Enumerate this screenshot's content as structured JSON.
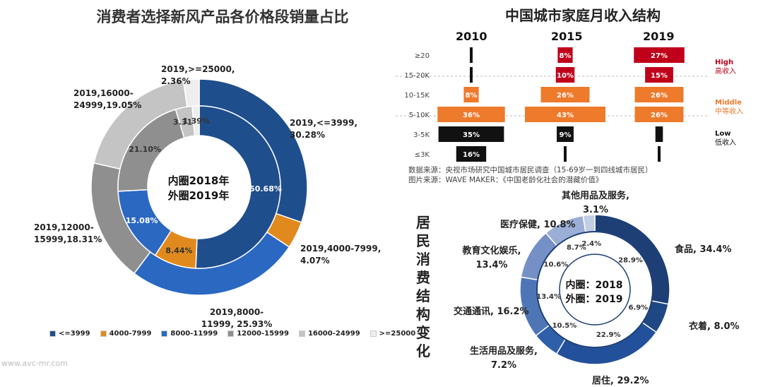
{
  "watermark": "www.avc-mr.com",
  "left_chart": {
    "title": "消费者选择新风产品各价格段销量占比",
    "center_line1": "内圈2018年",
    "center_line2": "外圈2019年",
    "legend": [
      {
        "label": "<=3999",
        "color": "#1f4e8c"
      },
      {
        "label": "4000-7999",
        "color": "#e08a1e"
      },
      {
        "label": "8000-11999",
        "color": "#2a68c2"
      },
      {
        "label": "12000-15999",
        "color": "#8f8f8f"
      },
      {
        "label": "16000-24999",
        "color": "#c4c4c4"
      },
      {
        "label": ">=25000",
        "color": "#eeeeee"
      }
    ],
    "outer_labels": [
      {
        "line1": "2019,<=3999,",
        "line2": "30.28%"
      },
      {
        "line1": "2019,4000-7999,",
        "line2": "4.07%"
      },
      {
        "line1": "2019,8000-",
        "line2": "11999, 25.93%"
      },
      {
        "line1": "2019,12000-",
        "line2": "15999,18.31%"
      },
      {
        "line1": "2019,16000-",
        "line2": "24999,19.05%"
      },
      {
        "line1": "2019,>=25000,",
        "line2": "2.36%"
      }
    ],
    "inner_labels": [
      "50.68%",
      "8.44%",
      "15.08%",
      "21.10%",
      "3.31%",
      "1.39%"
    ]
  },
  "right_top": {
    "title": "中国城市家庭月收入结构",
    "years": [
      "2010",
      "2015",
      "2019"
    ],
    "source_line1": "数据来源：央视市场研究中国城市居民调查（15-69岁一到四线城市居民）",
    "source_line2": "图片来源：WAVE MAKER：《中国老龄化社会的潜藏价值》",
    "levels": [
      {
        "en": "High",
        "zh": "高收入",
        "color": "#c0001a"
      },
      {
        "en": "Middle",
        "zh": "中等收入",
        "color": "#ee7a2b"
      },
      {
        "en": "Low",
        "zh": "低收入",
        "color": "#111111"
      }
    ]
  },
  "right_bottom": {
    "vertical_title": "居民消费结构变化",
    "center_line1": "内圈：2018",
    "center_line2": "外圈：2019",
    "outer_labels": [
      {
        "line1": "食品, 34.4%",
        "line2": ""
      },
      {
        "line1": "衣着, 8.0%",
        "line2": ""
      },
      {
        "line1": "居住, 29.2%",
        "line2": ""
      },
      {
        "line1": "生活用品及服务,",
        "line2": "7.2%"
      },
      {
        "line1": "交通通讯, 16.2%",
        "line2": ""
      },
      {
        "line1": "教育文化娱乐,",
        "line2": "13.4%"
      },
      {
        "line1": "医疗保健, 10.8%",
        "line2": ""
      },
      {
        "line1": "其他用品及服务,",
        "line2": "3.1%"
      }
    ],
    "inner_labels": [
      "28.9%",
      "6.9%",
      "22.9%",
      "10.5%",
      "13.4%",
      "10.6%",
      "8.7%",
      "2.4%"
    ]
  },
  "chart_data": [
    {
      "type": "pie",
      "title": "消费者选择新风产品各价格段销量占比",
      "categories": [
        "<=3999",
        "4000-7999",
        "8000-11999",
        "12000-15999",
        "16000-24999",
        ">=25000"
      ],
      "series": [
        {
          "name": "2019",
          "values": [
            30.28,
            4.07,
            25.93,
            18.31,
            19.05,
            2.36
          ]
        },
        {
          "name": "2018",
          "values": [
            50.68,
            8.44,
            15.08,
            21.1,
            3.31,
            1.39
          ]
        }
      ],
      "colors": [
        "#1f4e8c",
        "#e08a1e",
        "#2a68c2",
        "#8f8f8f",
        "#c4c4c4",
        "#eeeeee"
      ]
    },
    {
      "type": "bar",
      "title": "中国城市家庭月收入结构",
      "categories": [
        "≥20",
        "15-20K",
        "10-15K",
        "5-10K",
        "3-5K",
        "≤3K"
      ],
      "series": [
        {
          "name": "2010",
          "values": [
            null,
            null,
            8,
            36,
            35,
            16
          ]
        },
        {
          "name": "2015",
          "values": [
            8,
            10,
            26,
            43,
            9,
            null
          ]
        },
        {
          "name": "2019",
          "values": [
            27,
            15,
            26,
            26,
            4,
            null
          ]
        }
      ],
      "bar_colors": [
        "#c0001a",
        "#c0001a",
        "#ee7a2b",
        "#ee7a2b",
        "#111111",
        "#111111"
      ]
    },
    {
      "type": "pie",
      "title": "居民消费结构变化",
      "categories": [
        "食品",
        "衣着",
        "居住",
        "生活用品及服务",
        "交通通讯",
        "教育文化娱乐",
        "医疗保健",
        "其他用品及服务"
      ],
      "series": [
        {
          "name": "2019",
          "values": [
            34.4,
            8.0,
            29.2,
            7.2,
            16.2,
            13.4,
            10.8,
            3.1
          ]
        },
        {
          "name": "2018",
          "values": [
            28.9,
            6.9,
            22.9,
            10.5,
            13.4,
            10.6,
            8.7,
            2.4
          ]
        }
      ],
      "colors": [
        "#1d3f75",
        "#1f4784",
        "#23509a",
        "#2f5fa8",
        "#4e76b7",
        "#7590c6",
        "#9aaed6",
        "#c2cde6"
      ]
    }
  ]
}
